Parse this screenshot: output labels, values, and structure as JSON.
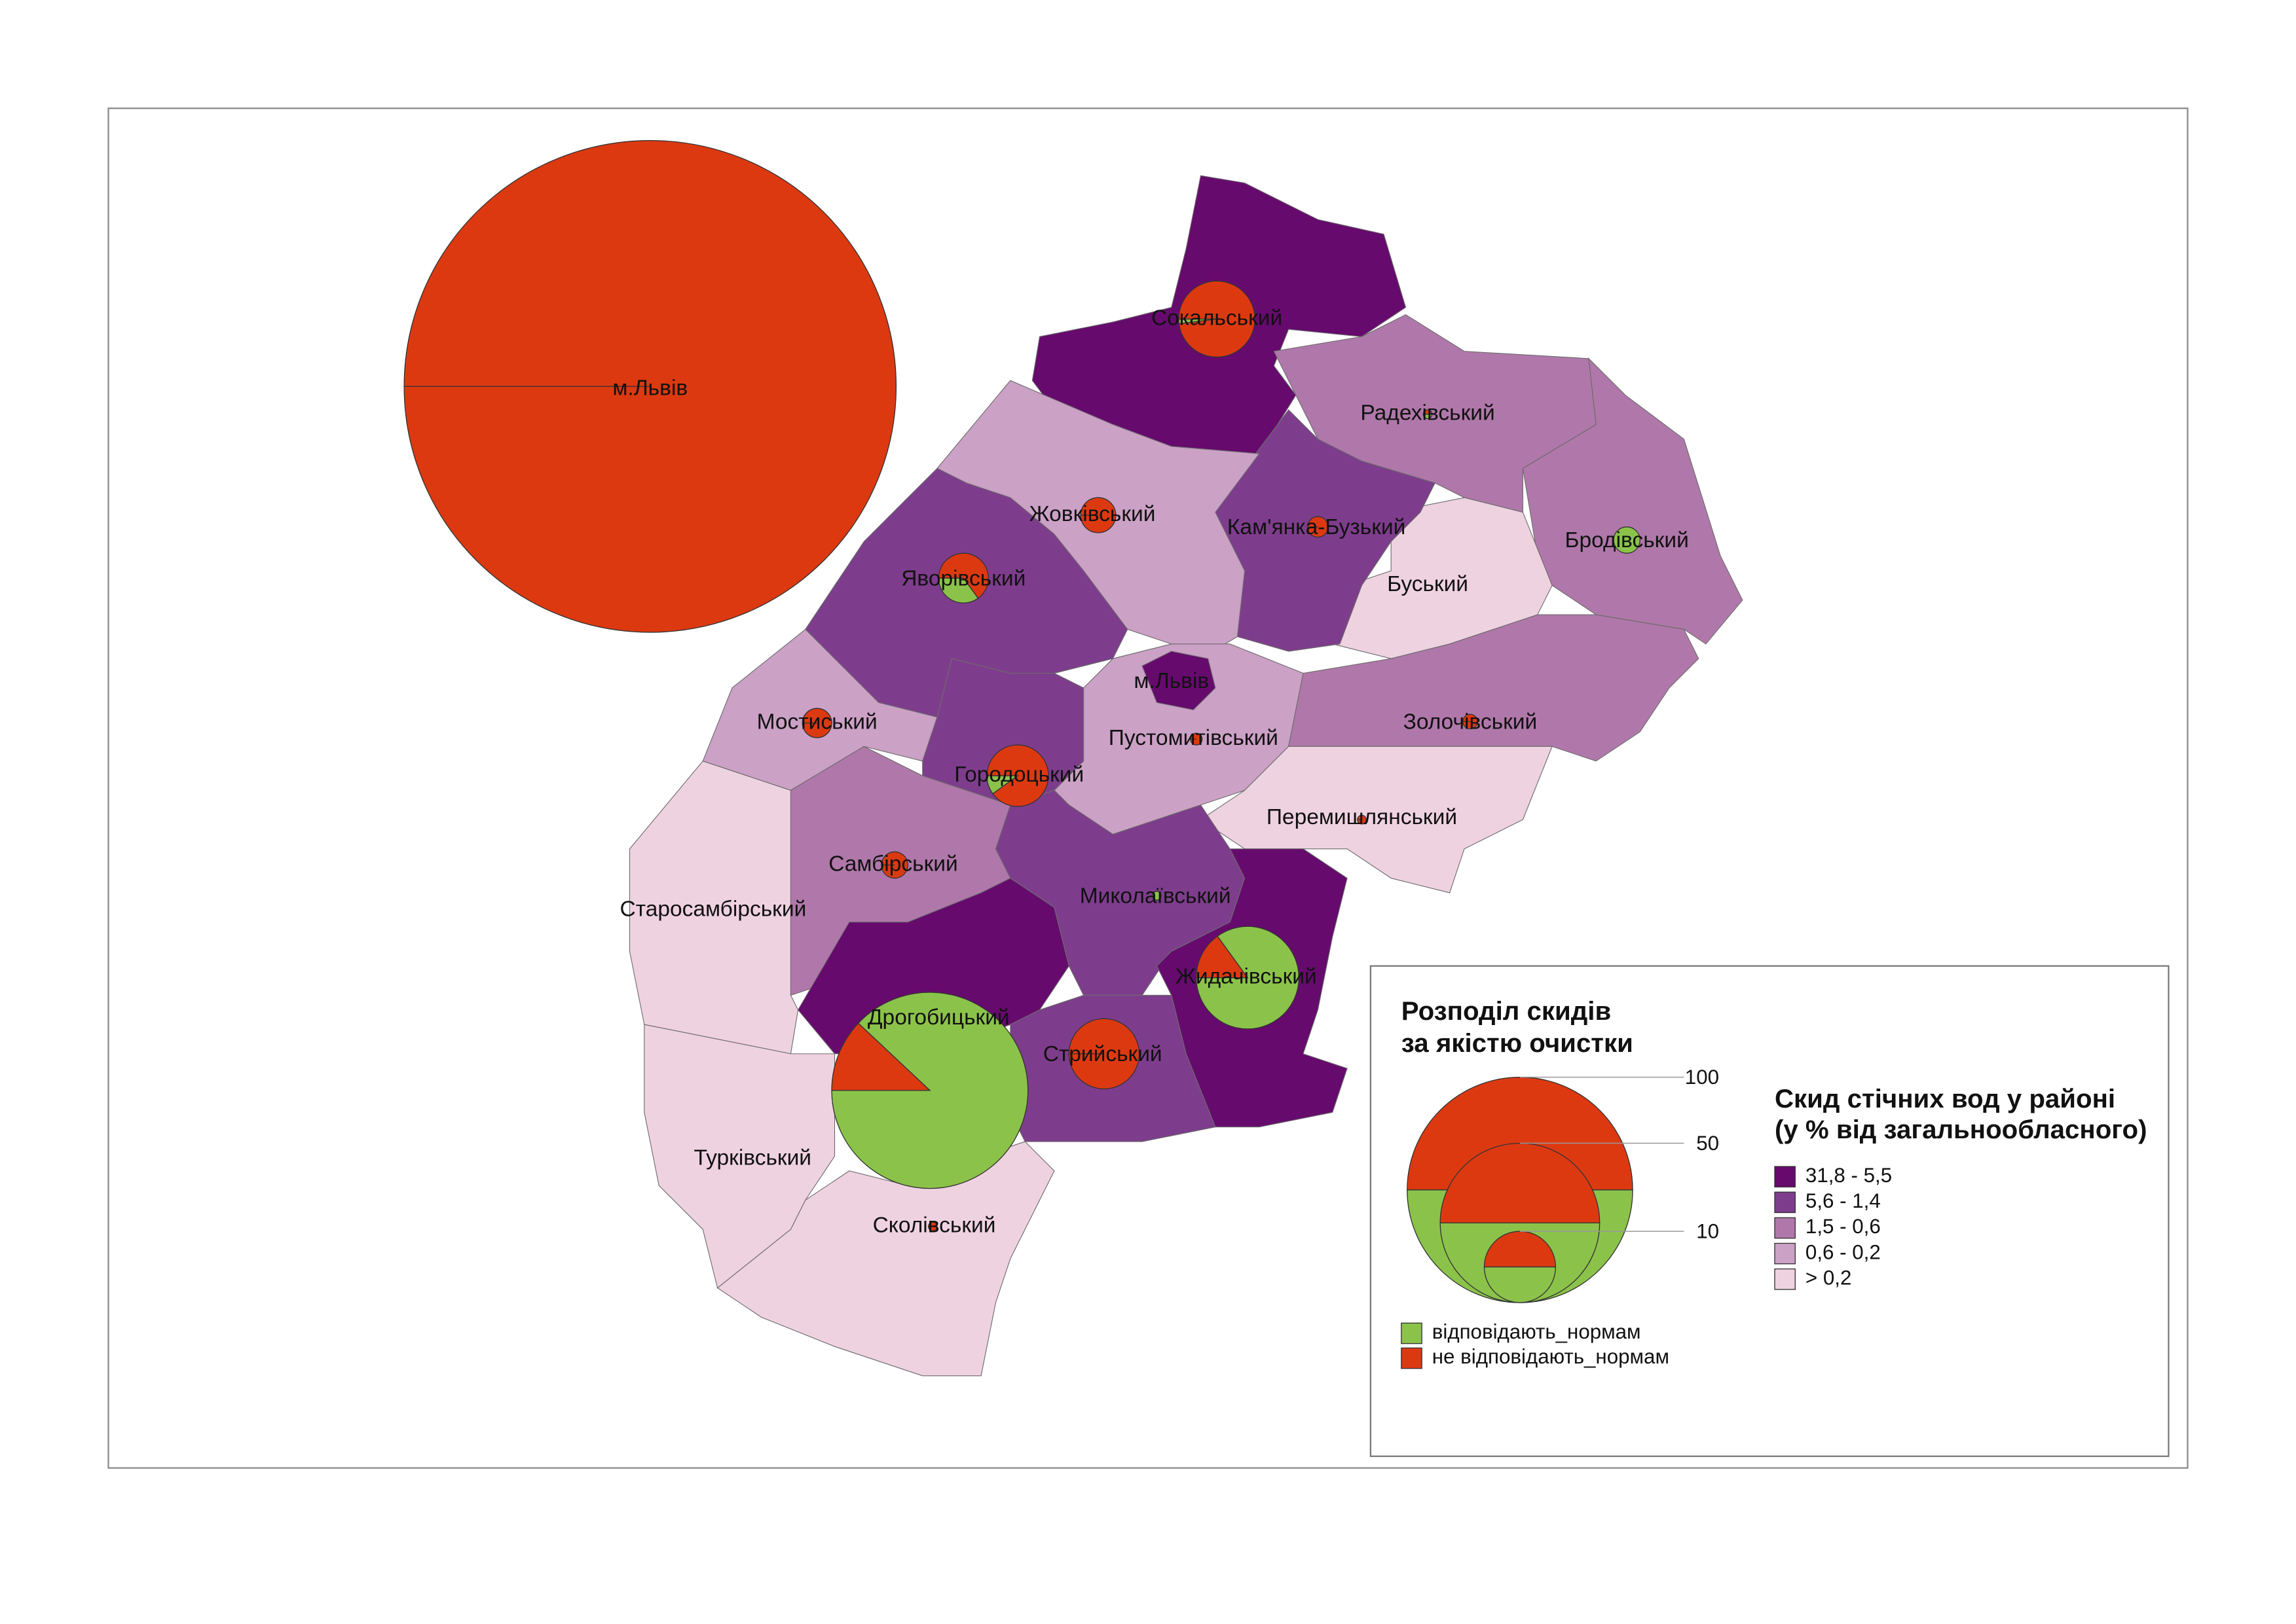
{
  "map": {
    "districts": [
      {
        "name": "Сокальський",
        "class": 0,
        "compliant_share": 2,
        "discharge": 11.4
      },
      {
        "name": "Радехівський",
        "class": 2,
        "compliant_share": 50,
        "discharge": 0.15
      },
      {
        "name": "Бродівський",
        "class": 2,
        "compliant_share": 100,
        "discharge": 1.37
      },
      {
        "name": "Буський",
        "class": 4
      },
      {
        "name": "Кам'янка-Бузький",
        "class": 1,
        "compliant_share": 0,
        "discharge": 0.83
      },
      {
        "name": "Жовківський",
        "class": 3,
        "compliant_share": 0,
        "discharge": 2.43
      },
      {
        "name": "Яворівський",
        "class": 1,
        "compliant_share": 35,
        "discharge": 4.87
      },
      {
        "name": "Мостиський",
        "class": 3,
        "compliant_share": 0,
        "discharge": 1.69
      },
      {
        "name": "Городоцький",
        "class": 1,
        "compliant_share": 10,
        "discharge": 7.44
      },
      {
        "name": "Пустомитівський",
        "class": 3,
        "compliant_share": 0,
        "discharge": 0.27
      },
      {
        "name": "м.Львів",
        "class": 0,
        "compliant_share": 0,
        "discharge": 476
      },
      {
        "name": "Золочівський",
        "class": 2,
        "compliant_share": 0,
        "discharge": 0.42
      },
      {
        "name": "Перемишлянський",
        "class": 4,
        "compliant_share": 0,
        "discharge": 0.15
      },
      {
        "name": "Самбірський",
        "class": 2,
        "compliant_share": 0,
        "discharge": 1.37
      },
      {
        "name": "Старосамбірський",
        "class": 4
      },
      {
        "name": "Турківський",
        "class": 4
      },
      {
        "name": "Сколівський",
        "class": 4,
        "compliant_share": 0,
        "discharge": 0.15
      },
      {
        "name": "Дрогобицький",
        "class": 0,
        "compliant_share": 88,
        "discharge": 75.7
      },
      {
        "name": "Миколаївський",
        "class": 1,
        "compliant_share": 100,
        "discharge": 0.15
      },
      {
        "name": "Жидачівський",
        "class": 0,
        "compliant_share": 85,
        "discharge": 20.7
      },
      {
        "name": "Стрийський",
        "class": 1,
        "compliant_share": 0,
        "discharge": 9.7
      }
    ],
    "quality_legend": {
      "title": [
        "Розподіл скидів",
        "за якістю очистки"
      ],
      "sizes": [
        100,
        50,
        10
      ],
      "items": [
        {
          "label": "відповідають_нормам",
          "color": "#8bc34a"
        },
        {
          "label": "не відповідають_нормам",
          "color": "#dd3911"
        }
      ]
    },
    "class_legend": {
      "title": [
        "Скид стічних вод у районі",
        "(у % від загальнообласного)"
      ],
      "classes": [
        {
          "label": "31,8 - 5,5",
          "color": "#660a6e"
        },
        {
          "label": "5,6 - 1,4",
          "color": "#7e3d8c"
        },
        {
          "label": "1,5 - 0,6",
          "color": "#b078aa"
        },
        {
          "label": "0,6 - 0,2",
          "color": "#cca1c6"
        },
        {
          "label": "> 0,2",
          "color": "#efd2e0"
        }
      ]
    }
  }
}
